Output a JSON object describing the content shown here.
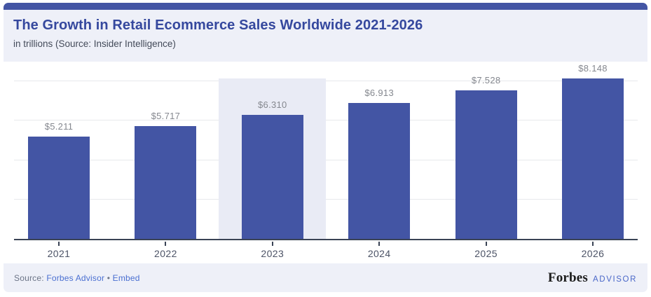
{
  "header": {
    "title": "The Growth in Retail Ecommerce Sales Worldwide 2021-2026",
    "subtitle": "in trillions (Source: Insider Intelligence)"
  },
  "chart_data": {
    "type": "bar",
    "title": "The Growth in Retail Ecommerce Sales Worldwide 2021-2026",
    "subtitle": "in trillions (Source: Insider Intelligence)",
    "categories": [
      "2021",
      "2022",
      "2023",
      "2024",
      "2025",
      "2026"
    ],
    "values": [
      5.211,
      5.717,
      6.31,
      6.913,
      7.528,
      8.148
    ],
    "value_labels": [
      "$5.211",
      "$5.717",
      "$6.310",
      "$6.913",
      "$7.528",
      "$8.148"
    ],
    "units": "trillions USD",
    "highlighted_category": "2023",
    "xlabel": "",
    "ylabel": "in trillions",
    "ylim": [
      0,
      9.1
    ],
    "grid": true,
    "y_gridlines_estimated": [
      2,
      4,
      6,
      8
    ],
    "y_tick_labels_visible": false,
    "legend": "none"
  },
  "footer": {
    "source_label": "Source:",
    "source_link": "Forbes Advisor",
    "separator": "•",
    "embed_link": "Embed",
    "brand_name": "Forbes",
    "brand_suffix": "ADVISOR"
  },
  "colors": {
    "accent_bar": "#4355A4",
    "bar_fill": "#4355A4",
    "highlight_band": "#E9EBF5",
    "header_bg": "#EEF0F8",
    "footer_bg": "#EEF0F8",
    "title_text": "#35489E",
    "axis_line": "#3A4355",
    "value_label_text": "#85888F",
    "link_text": "#4A6FD1"
  }
}
